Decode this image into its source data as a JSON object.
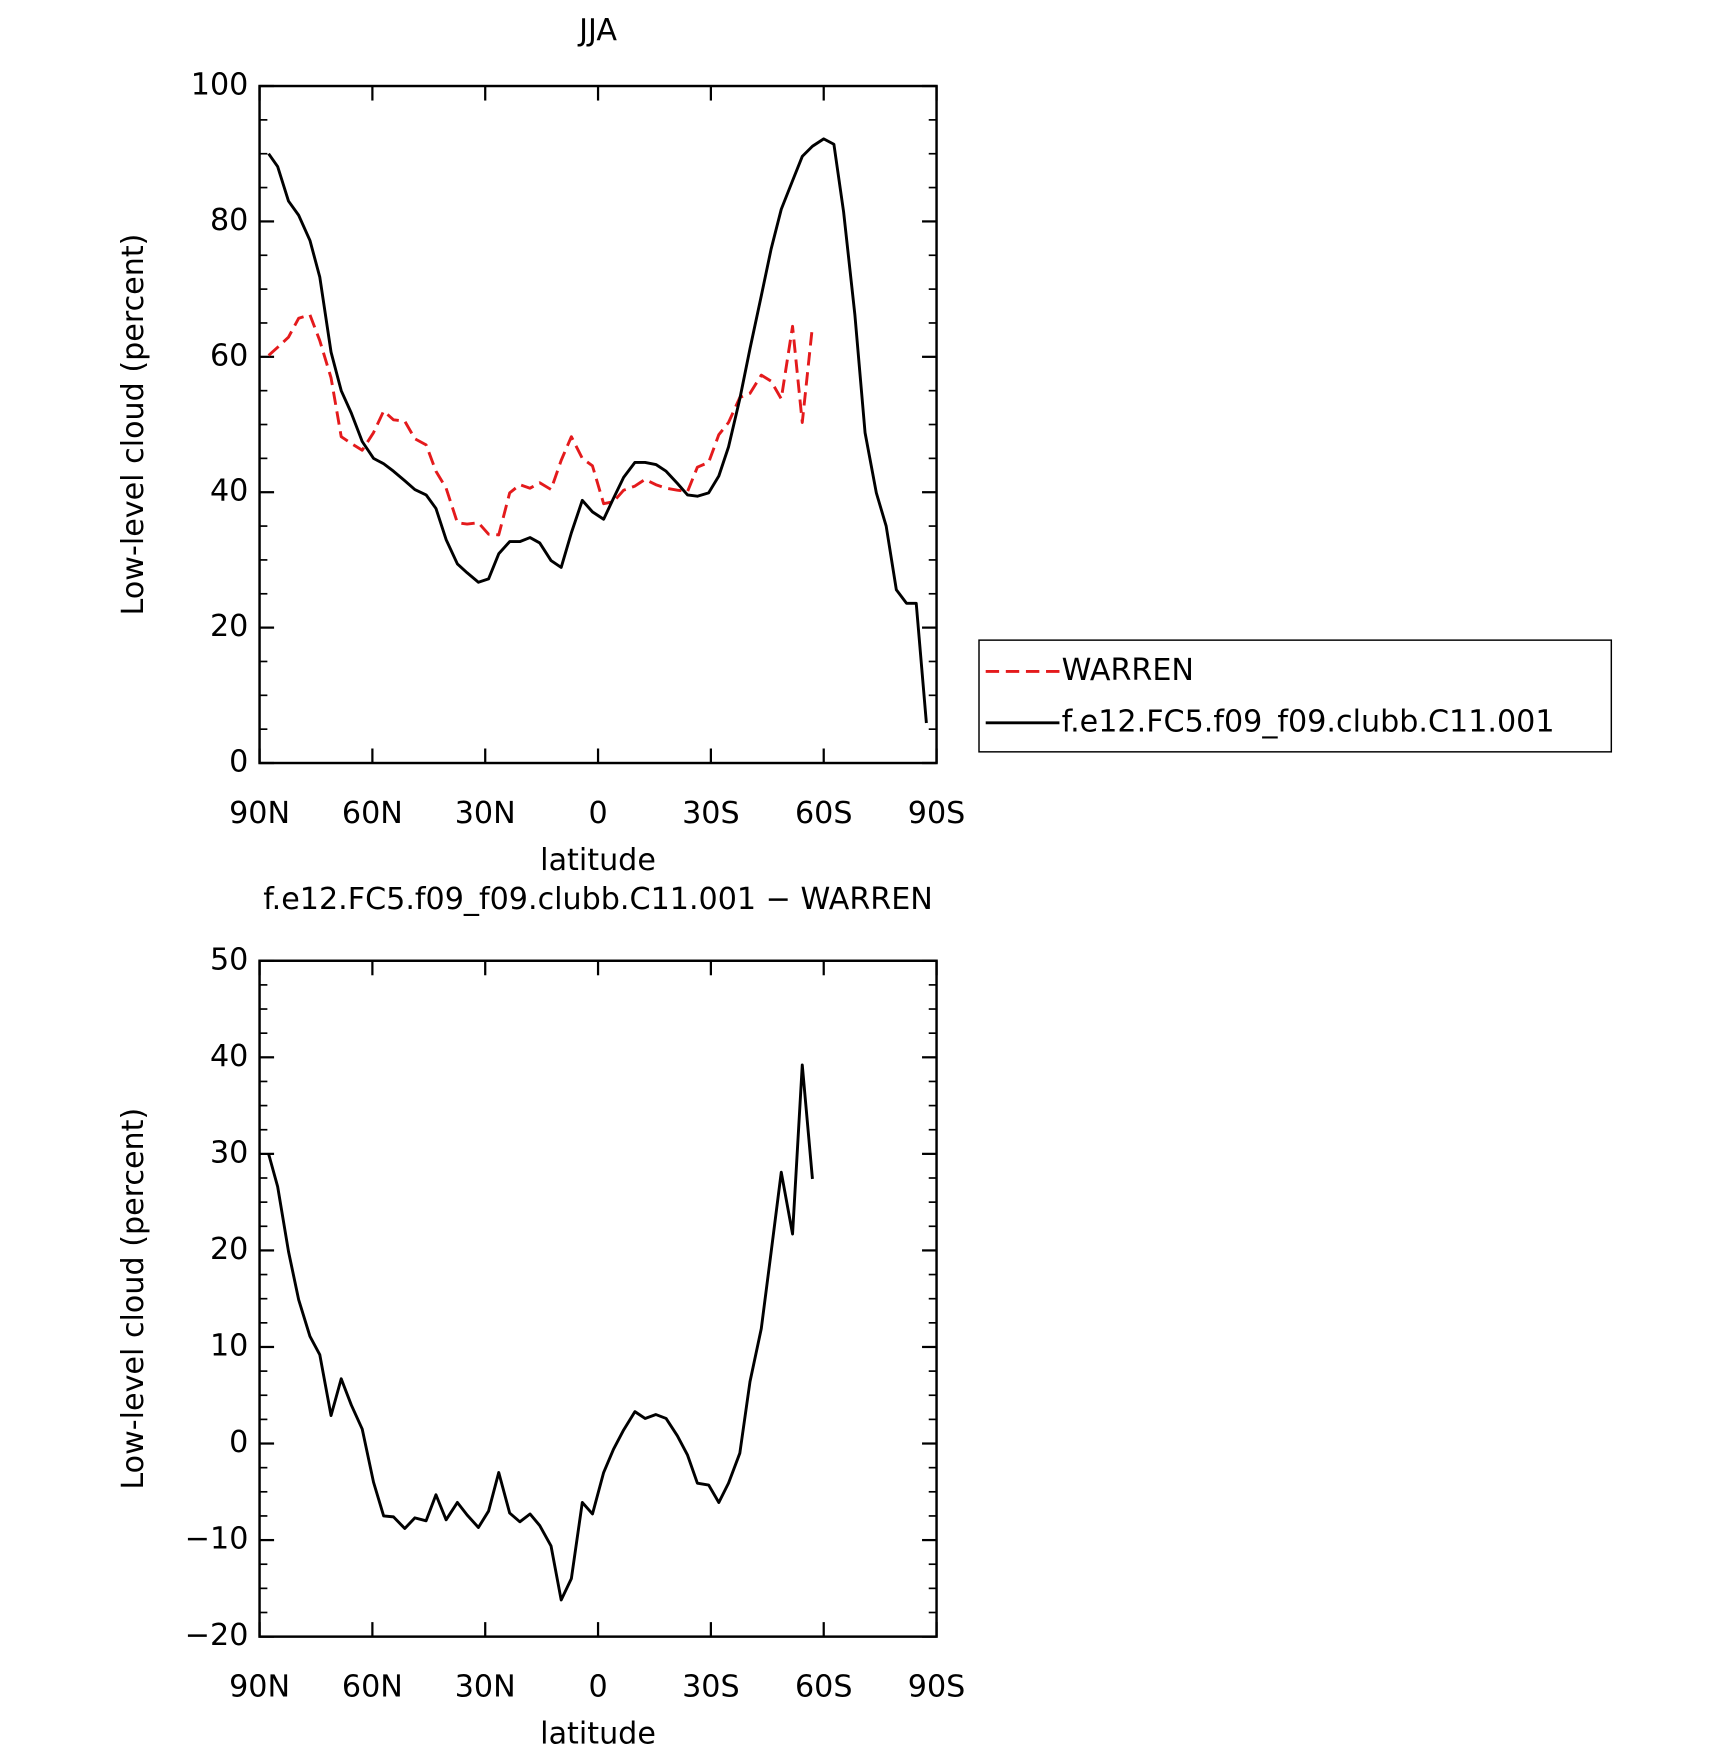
{
  "chart_data": [
    {
      "type": "line",
      "title": "JJA",
      "xlabel": "latitude",
      "ylabel": "Low-level cloud (percent)",
      "x": [
        87.6,
        85.2,
        82.3,
        79.6,
        76.6,
        74,
        71,
        68.3,
        65.6,
        62.7,
        59.7,
        57,
        54.4,
        51.4,
        48.7,
        45.7,
        43.1,
        40.4,
        37.4,
        34.8,
        31.8,
        29.1,
        26.4,
        23.5,
        20.8,
        18.1,
        15.5,
        12.5,
        9.8,
        7.1,
        4.2,
        1.5,
        -1.5,
        -4.1,
        -6.8,
        -9.8,
        -12.5,
        -15.4,
        -18.1,
        -21.1,
        -23.8,
        -26.4,
        -29.4,
        -32.1,
        -34.7,
        -37.7,
        -40.4,
        -43.4,
        -46,
        -48.7,
        -51.7,
        -54.3,
        -57,
        -60,
        -62.7,
        -65.3,
        -68.3,
        -71,
        -74,
        -76.6,
        -79.3,
        -82,
        -84.6,
        -87.3
      ],
      "series": [
        {
          "name": "WARREN",
          "color": "#e41a1c",
          "dash": true,
          "values": [
            60.2,
            61.4,
            62.9,
            65.7,
            66.2,
            62.4,
            56.9,
            48.2,
            47.2,
            46.2,
            48.8,
            52,
            50.7,
            50.5,
            47.9,
            47,
            43.1,
            40.6,
            35.5,
            35.3,
            35.5,
            33.8,
            33.7,
            39.9,
            41.1,
            40.6,
            41.4,
            40.4,
            44.7,
            48.2,
            45,
            43.9,
            38.3,
            38.6,
            40.3,
            40.9,
            41.9,
            41.1,
            40.6,
            40.3,
            40.1,
            43.7,
            44.4,
            48.5,
            50.3,
            54,
            54.6,
            57.3,
            56.4,
            53.8,
            64.5,
            50.3,
            64.5,
            null,
            null,
            null,
            null,
            null,
            null,
            null,
            null,
            null,
            null,
            null
          ]
        },
        {
          "name": "f.e12.FC5.f09_f09.clubb.C11.001",
          "color": "#000000",
          "dash": false,
          "values": [
            90,
            88.1,
            83,
            80.9,
            77.2,
            71.8,
            60.7,
            55,
            51.7,
            47.5,
            45,
            44.2,
            43.1,
            41.7,
            40.4,
            39.6,
            37.6,
            33,
            29.4,
            28.1,
            26.7,
            27.2,
            30.9,
            32.7,
            32.7,
            33.3,
            32.5,
            29.9,
            28.9,
            34,
            38.8,
            37.1,
            36,
            39.1,
            42.2,
            44.4,
            44.4,
            44.1,
            43.1,
            41.3,
            39.6,
            39.4,
            39.9,
            42.4,
            46.7,
            53.8,
            61.2,
            69,
            75.9,
            81.8,
            86,
            89.6,
            91.1,
            92.2,
            91.4,
            81.4,
            66.2,
            48.8,
            39.9,
            35,
            25.6,
            23.6,
            23.6,
            5.9
          ]
        }
      ],
      "xlim": [
        90,
        -90
      ],
      "xticks": [
        {
          "value": 90,
          "label": "90N"
        },
        {
          "value": 60,
          "label": "60N"
        },
        {
          "value": 30,
          "label": "30N"
        },
        0,
        {
          "value": -30,
          "label": "30S"
        },
        {
          "value": -60,
          "label": "60S"
        },
        {
          "value": -90,
          "label": "90S"
        }
      ],
      "ylim": [
        0,
        100
      ],
      "yticks": [
        0,
        20,
        40,
        60,
        80,
        100
      ],
      "legend": "right"
    },
    {
      "type": "line",
      "title": "f.e12.FC5.f09_f09.clubb.C11.001 − WARREN",
      "xlabel": "latitude",
      "ylabel": "Low-level cloud (percent)",
      "x": [
        87.6,
        85.2,
        82.3,
        79.6,
        76.6,
        74,
        71,
        68.3,
        65.6,
        62.7,
        59.7,
        57,
        54.4,
        51.4,
        48.7,
        45.7,
        43.1,
        40.4,
        37.4,
        34.8,
        31.8,
        29.1,
        26.4,
        23.5,
        20.8,
        18.1,
        15.5,
        12.5,
        9.8,
        7.1,
        4.2,
        1.5,
        -1.5,
        -4.1,
        -6.8,
        -9.8,
        -12.5,
        -15.4,
        -18.1,
        -21.1,
        -23.8,
        -26.4,
        -29.4,
        -32.1,
        -34.7,
        -37.7,
        -40.4,
        -43.4,
        -46,
        -48.7,
        -51.7,
        -54.3,
        -57
      ],
      "values": [
        30,
        26.6,
        19.9,
        14.9,
        11.1,
        9.2,
        2.9,
        6.7,
        4,
        1.5,
        -4,
        -7.5,
        -7.6,
        -8.8,
        -7.7,
        -8,
        -5.3,
        -7.9,
        -6.1,
        -7.4,
        -8.7,
        -7,
        -3,
        -7.2,
        -8.1,
        -7.3,
        -8.5,
        -10.6,
        -16.2,
        -14,
        -6.1,
        -7.3,
        -3,
        -0.6,
        1.4,
        3.3,
        2.6,
        3,
        2.6,
        0.8,
        -1.2,
        -4.1,
        -4.3,
        -6.1,
        -4.1,
        -1,
        6.4,
        11.9,
        19.8,
        28.1,
        21.7,
        39.2,
        27.4
      ],
      "color": "#000000",
      "xlim": [
        90,
        -90
      ],
      "xticks": [
        {
          "value": 90,
          "label": "90N"
        },
        {
          "value": 60,
          "label": "60N"
        },
        {
          "value": 30,
          "label": "30N"
        },
        0,
        {
          "value": -30,
          "label": "30S"
        },
        {
          "value": -60,
          "label": "60S"
        },
        {
          "value": -90,
          "label": "90S"
        }
      ],
      "ylim": [
        -20,
        50
      ],
      "yticks": [
        {
          "value": -20,
          "label": "−20"
        },
        {
          "value": -10,
          "label": "−10"
        },
        0,
        10,
        20,
        30,
        40,
        50
      ]
    }
  ]
}
